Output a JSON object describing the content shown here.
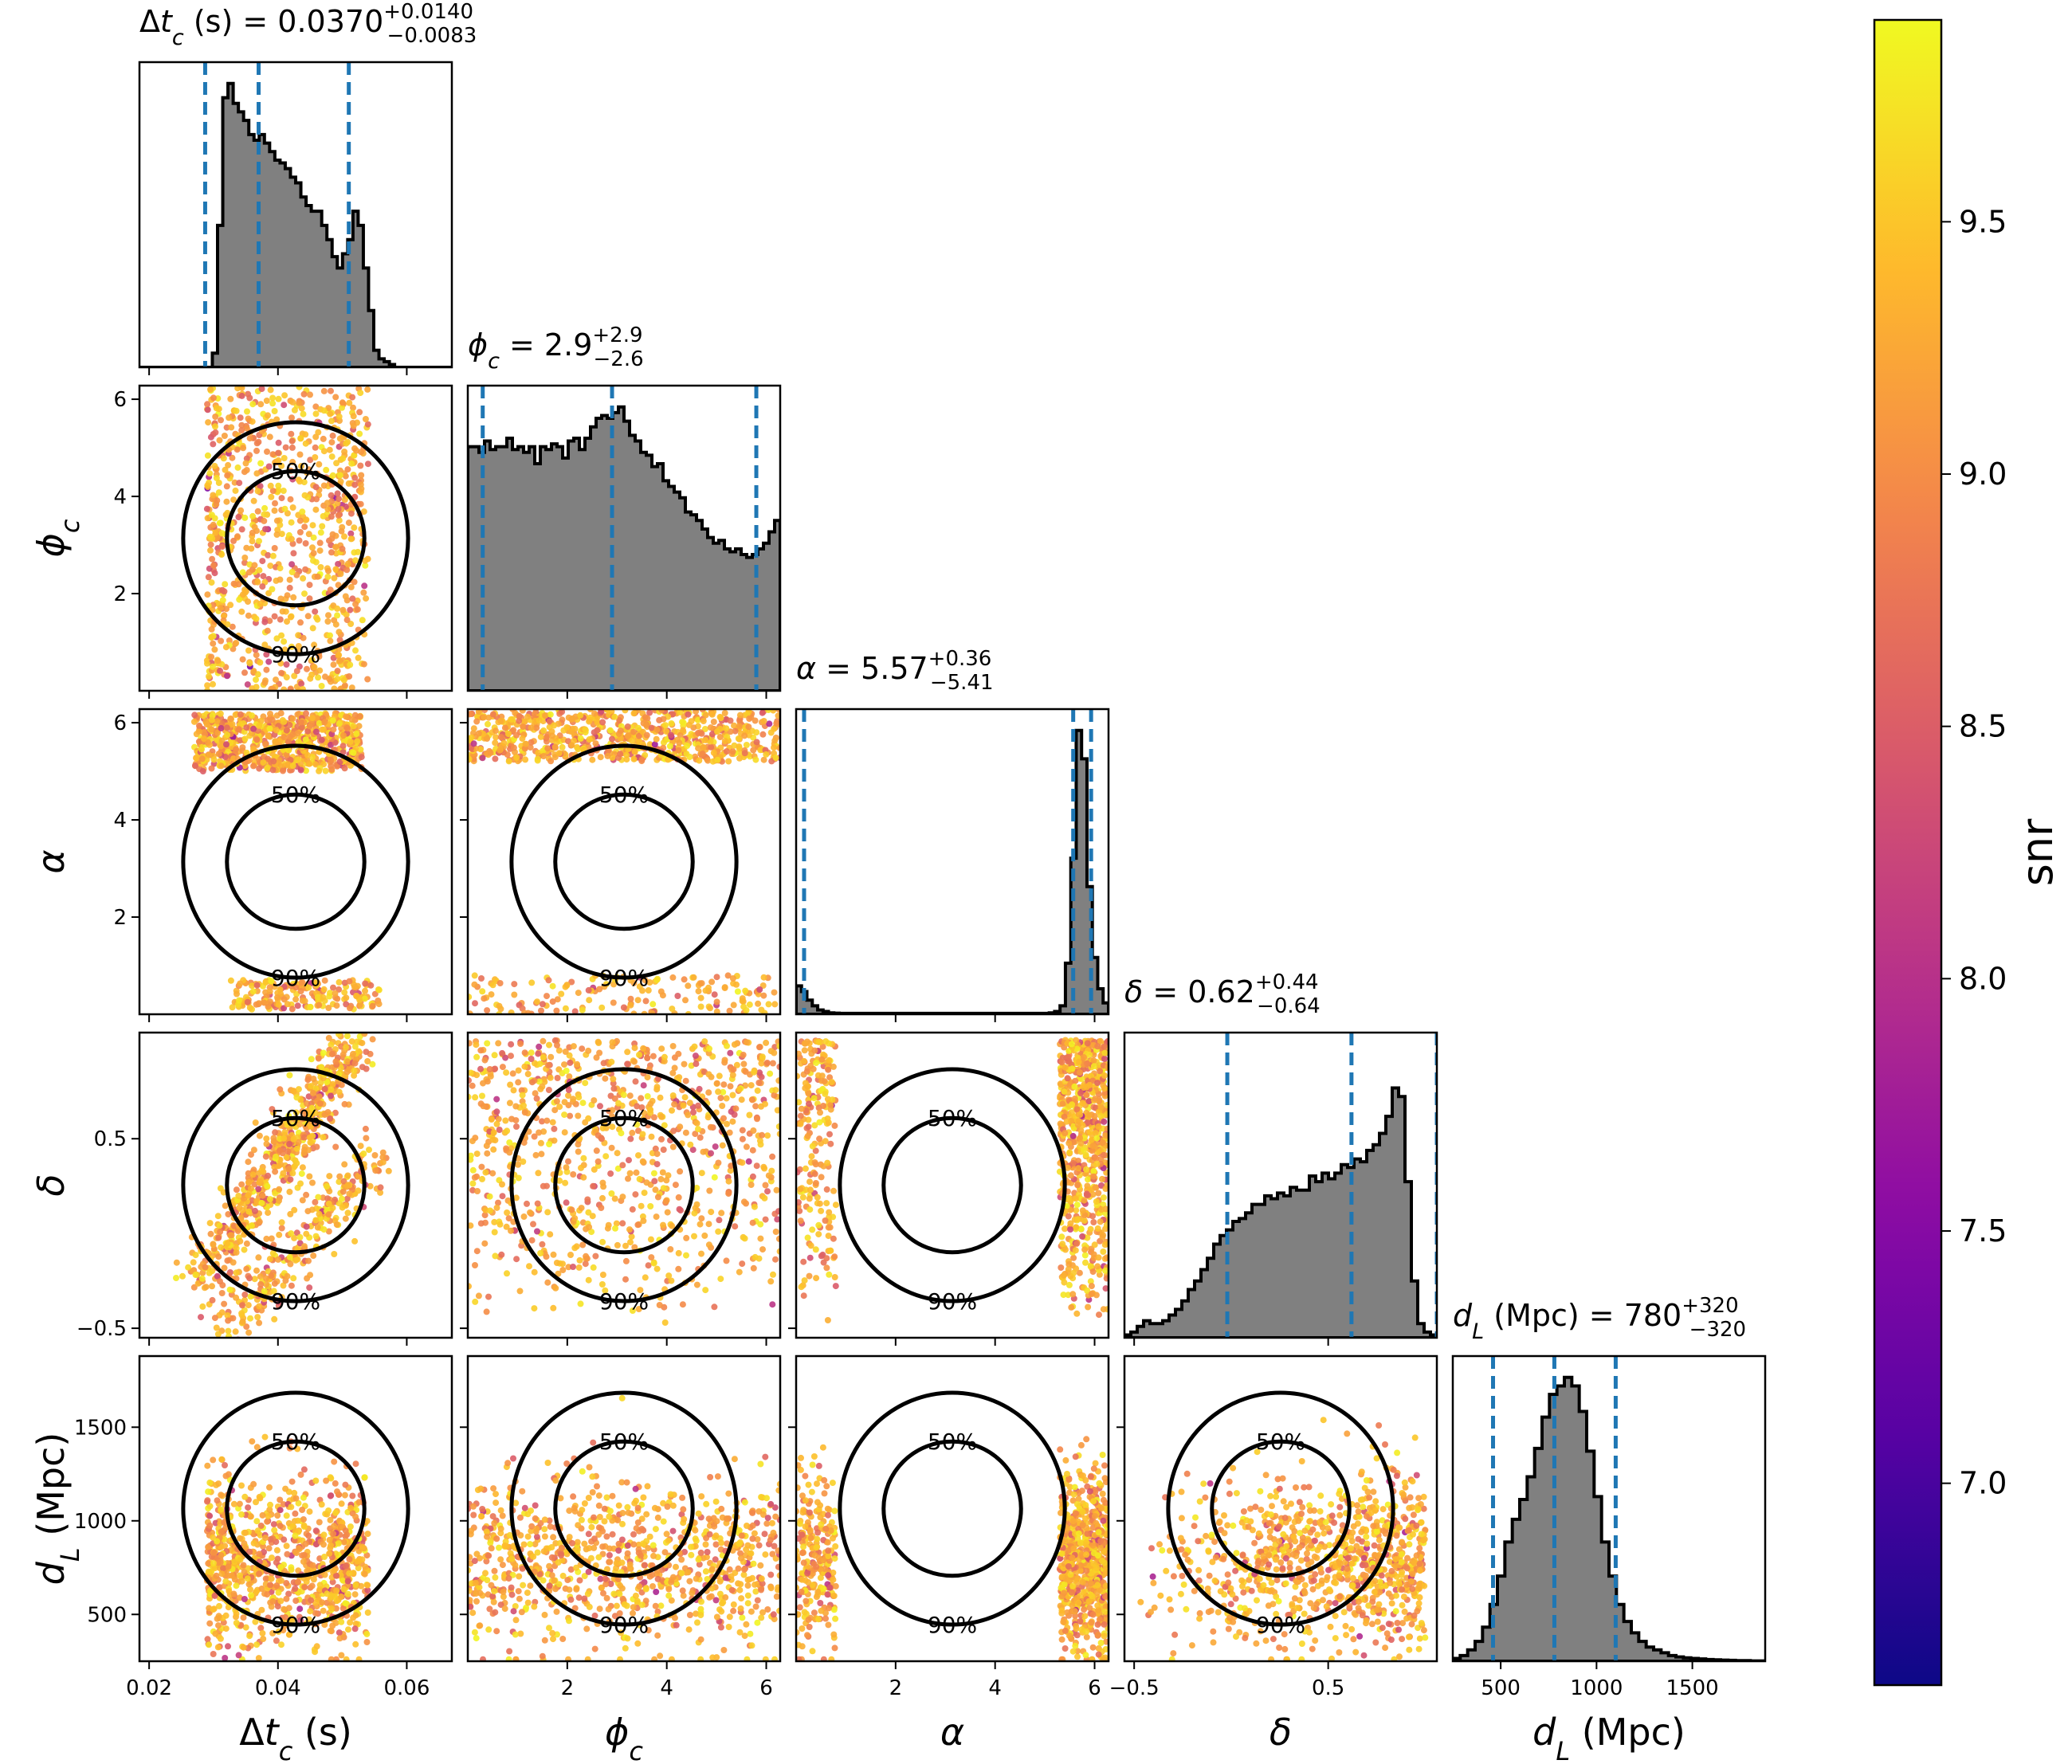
{
  "chart_data": {
    "type": "corner",
    "parameters": [
      {
        "key": "dtc",
        "title_prefix": "Δt_c (s) = ",
        "median": "0.0370",
        "plus": "+0.0140",
        "minus": "−0.0083",
        "axis_label": "Δt_c (s)",
        "range": [
          0.0185,
          0.067
        ],
        "ticks": [
          0.02,
          0.04,
          0.06
        ],
        "tick_labels": [
          "0.02",
          "0.04",
          "0.06"
        ],
        "quantiles": [
          0.0287,
          0.037,
          0.051
        ]
      },
      {
        "key": "phi",
        "title_prefix": "ϕ_c = ",
        "median": "2.9",
        "plus": "+2.9",
        "minus": "−2.6",
        "axis_label": "ϕ_c",
        "range": [
          0.0,
          6.28
        ],
        "ticks": [
          2,
          4,
          6
        ],
        "tick_labels": [
          "2",
          "4",
          "6"
        ],
        "quantiles": [
          0.3,
          2.9,
          5.8
        ]
      },
      {
        "key": "alpha",
        "title_prefix": "α = ",
        "median": "5.57",
        "plus": "+0.36",
        "minus": "−5.41",
        "axis_label": "α",
        "range": [
          0.0,
          6.28
        ],
        "ticks": [
          2,
          4,
          6
        ],
        "tick_labels": [
          "2",
          "4",
          "6"
        ],
        "quantiles": [
          0.16,
          5.57,
          5.93
        ]
      },
      {
        "key": "delta",
        "title_prefix": "δ = ",
        "median": "0.62",
        "plus": "+0.44",
        "minus": "−0.64",
        "axis_label": "δ",
        "range": [
          -0.55,
          1.06
        ],
        "ticks": [
          -0.5,
          0.5
        ],
        "tick_labels": [
          "−0.5",
          "0.5"
        ],
        "quantiles": [
          -0.02,
          0.62,
          1.06
        ]
      },
      {
        "key": "dl",
        "title_prefix": "d_L (Mpc) = ",
        "median": "780",
        "plus": "+320",
        "minus": "−320",
        "axis_label": "d_L (Mpc)",
        "range": [
          250,
          1880
        ],
        "ticks": [
          500,
          1000,
          1500
        ],
        "tick_labels": [
          "500",
          "1000",
          "1500"
        ],
        "quantiles": [
          460,
          780,
          1100
        ]
      }
    ],
    "histograms": {
      "dtc": [
        0,
        0,
        0,
        0,
        0,
        0,
        0,
        0,
        0,
        0,
        0,
        0,
        0,
        0,
        0.05,
        0.5,
        0.95,
        1.0,
        0.93,
        0.9,
        0.87,
        0.82,
        0.8,
        0.82,
        0.79,
        0.76,
        0.73,
        0.72,
        0.7,
        0.67,
        0.65,
        0.6,
        0.57,
        0.55,
        0.55,
        0.5,
        0.45,
        0.39,
        0.35,
        0.4,
        0.45,
        0.55,
        0.5,
        0.35,
        0.2,
        0.06,
        0.03,
        0.02,
        0.01,
        0,
        0,
        0,
        0,
        0,
        0,
        0,
        0,
        0,
        0,
        0
      ],
      "phi": [
        0.86,
        0.86,
        0.84,
        0.88,
        0.85,
        0.86,
        0.86,
        0.89,
        0.85,
        0.86,
        0.84,
        0.86,
        0.8,
        0.86,
        0.85,
        0.87,
        0.86,
        0.82,
        0.88,
        0.89,
        0.85,
        0.89,
        0.93,
        0.96,
        0.97,
        0.96,
        0.98,
        1.0,
        0.95,
        0.9,
        0.88,
        0.84,
        0.83,
        0.79,
        0.8,
        0.74,
        0.72,
        0.7,
        0.68,
        0.63,
        0.62,
        0.6,
        0.57,
        0.54,
        0.52,
        0.53,
        0.5,
        0.49,
        0.5,
        0.48,
        0.47,
        0.48,
        0.5,
        0.52,
        0.56,
        0.6
      ],
      "alpha": [
        0.1,
        0.08,
        0.05,
        0.03,
        0.015,
        0.01,
        0.005,
        0.004,
        0.003,
        0.003,
        0.003,
        0.003,
        0.003,
        0.003,
        0.003,
        0.003,
        0.003,
        0.003,
        0.003,
        0.003,
        0.003,
        0.003,
        0.003,
        0.003,
        0.003,
        0.003,
        0.003,
        0.003,
        0.003,
        0.003,
        0.003,
        0.003,
        0.003,
        0.003,
        0.003,
        0.003,
        0.003,
        0.003,
        0.003,
        0.003,
        0.003,
        0.003,
        0.003,
        0.003,
        0.003,
        0.003,
        0.003,
        0.005,
        0.01,
        0.03,
        0.18,
        0.55,
        1.0,
        0.9,
        0.45,
        0.2,
        0.09,
        0.04
      ],
      "delta": [
        0.01,
        0.02,
        0.04,
        0.06,
        0.05,
        0.05,
        0.06,
        0.08,
        0.1,
        0.13,
        0.17,
        0.2,
        0.24,
        0.28,
        0.33,
        0.36,
        0.38,
        0.41,
        0.42,
        0.44,
        0.47,
        0.47,
        0.5,
        0.49,
        0.51,
        0.5,
        0.53,
        0.52,
        0.52,
        0.57,
        0.55,
        0.58,
        0.56,
        0.58,
        0.61,
        0.6,
        0.63,
        0.62,
        0.66,
        0.68,
        0.72,
        0.78,
        0.88,
        0.85,
        0.55,
        0.2,
        0.05,
        0.02,
        0.01
      ],
      "dl": [
        0.01,
        0.02,
        0.04,
        0.07,
        0.12,
        0.2,
        0.3,
        0.42,
        0.5,
        0.57,
        0.65,
        0.75,
        0.86,
        0.94,
        0.97,
        1.0,
        0.97,
        0.88,
        0.74,
        0.58,
        0.42,
        0.3,
        0.2,
        0.14,
        0.1,
        0.07,
        0.05,
        0.04,
        0.03,
        0.02,
        0.015,
        0.012,
        0.01,
        0.008,
        0.006,
        0.005,
        0.004,
        0.003,
        0.002,
        0.002,
        0.001,
        0.001
      ]
    },
    "contour_label_50": "50%",
    "contour_label_90": "90%",
    "colorbar": {
      "label": "snr",
      "min": 6.6,
      "max": 9.9,
      "ticks": [
        7.0,
        7.5,
        8.0,
        8.5,
        9.0,
        9.5
      ],
      "tick_labels": [
        "7.0",
        "7.5",
        "8.0",
        "8.5",
        "9.0",
        "9.5"
      ],
      "colormap": "plasma"
    },
    "colors": {
      "hist_fill": "#808080",
      "hist_edge": "#000000",
      "quantile_line": "#1f77b4",
      "contour": "#000000"
    }
  }
}
